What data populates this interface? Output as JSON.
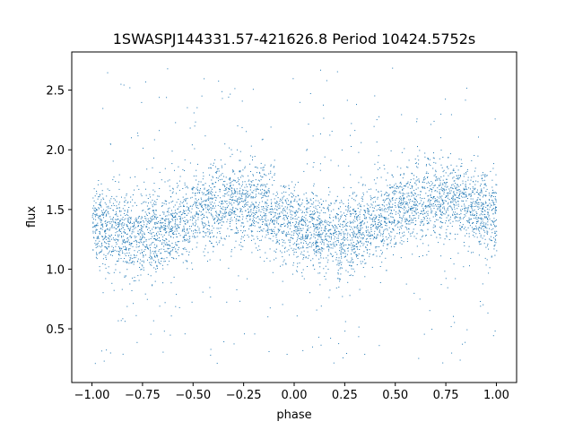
{
  "chart_data": {
    "type": "scatter",
    "title": "1SWASPJ144331.57-421626.8 Period 10424.5752s",
    "xlabel": "phase",
    "ylabel": "flux",
    "xlim": [
      -1.1,
      1.1
    ],
    "ylim": [
      0.05,
      2.82
    ],
    "x_ticks": [
      -1.0,
      -0.75,
      -0.5,
      -0.25,
      0.0,
      0.25,
      0.5,
      0.75,
      1.0
    ],
    "x_tick_labels": [
      "−1.00",
      "−0.75",
      "−0.50",
      "−0.25",
      "0.00",
      "0.25",
      "0.50",
      "0.75",
      "1.00"
    ],
    "y_ticks": [
      0.5,
      1.0,
      1.5,
      2.0,
      2.5
    ],
    "y_tick_labels": [
      "0.5",
      "1.0",
      "1.5",
      "2.0",
      "2.5"
    ],
    "grid": false,
    "legend": "none",
    "marker_color": "#1f77b4",
    "x_range": [
      -1.0,
      1.0
    ],
    "trend": {
      "phase": [
        -1.0,
        -0.9,
        -0.8,
        -0.75,
        -0.6,
        -0.5,
        -0.4,
        -0.3,
        -0.25,
        -0.2,
        -0.1,
        0.0,
        0.1,
        0.2,
        0.25,
        0.3,
        0.4,
        0.5,
        0.6,
        0.7,
        0.75,
        0.8,
        0.9,
        1.0
      ],
      "flux": [
        1.4,
        1.33,
        1.28,
        1.28,
        1.36,
        1.46,
        1.52,
        1.56,
        1.56,
        1.55,
        1.48,
        1.38,
        1.32,
        1.28,
        1.28,
        1.32,
        1.42,
        1.5,
        1.56,
        1.58,
        1.58,
        1.56,
        1.5,
        1.42
      ]
    },
    "scatter_sd": 0.17
  }
}
